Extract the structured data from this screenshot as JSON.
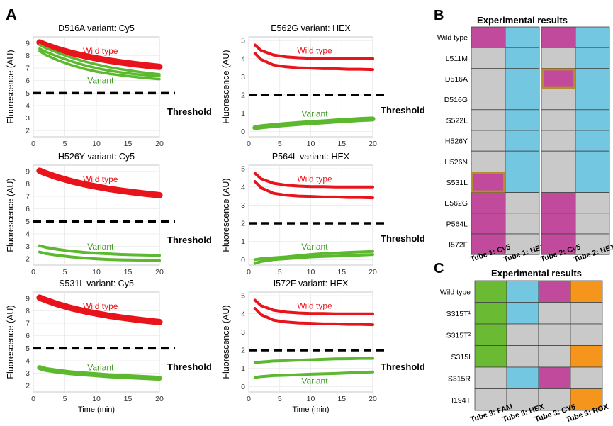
{
  "panel_labels": {
    "a": "A",
    "b": "B",
    "c": "C"
  },
  "threshold_label": "Threshold",
  "colors": {
    "wild_type": "#e8131b",
    "variant": "#5cb82e",
    "cy5": "#c14a9c",
    "hex": "#73c7e0",
    "fam": "#6aba34",
    "rox": "#f5951c",
    "grey": "#c9c9c9",
    "highlight_border": "#b58c2f"
  },
  "chart_data": [
    {
      "type": "line",
      "title": "D516A variant: Cy5",
      "xlabel": "",
      "ylabel": "Fluorescence (AU)",
      "xlim": [
        0,
        20
      ],
      "ylim": [
        1.5,
        9.5
      ],
      "xticks": [
        0,
        5,
        10,
        15,
        20
      ],
      "yticks": [
        2,
        3,
        4,
        5,
        6,
        7,
        8,
        9
      ],
      "threshold": 5,
      "x": [
        1,
        2,
        4,
        6,
        8,
        10,
        12,
        14,
        16,
        18,
        20
      ],
      "series": [
        {
          "name": "Wild type",
          "label": "Wild type",
          "color": "wild",
          "thick": 9,
          "values": [
            9.05,
            8.85,
            8.5,
            8.22,
            7.98,
            7.78,
            7.6,
            7.45,
            7.32,
            7.2,
            7.1
          ]
        },
        {
          "name": "Variant",
          "color": "variant",
          "thick": 3.5,
          "values": [
            8.85,
            8.6,
            8.2,
            7.85,
            7.55,
            7.3,
            7.08,
            6.9,
            6.75,
            6.62,
            6.5
          ]
        },
        {
          "name": "Variant",
          "color": "variant",
          "thick": 3.5,
          "values": [
            8.55,
            8.3,
            7.9,
            7.55,
            7.25,
            7.0,
            6.8,
            6.65,
            6.52,
            6.42,
            6.35
          ]
        },
        {
          "name": "Variant",
          "label": "Variant",
          "color": "variant",
          "thick": 3.5,
          "values": [
            8.35,
            8.05,
            7.6,
            7.25,
            6.95,
            6.72,
            6.55,
            6.42,
            6.3,
            6.2,
            6.12
          ]
        }
      ]
    },
    {
      "type": "line",
      "title": "E562G variant: HEX",
      "xlabel": "",
      "ylabel": "Fluorescence (AU)",
      "xlim": [
        0,
        20
      ],
      "ylim": [
        -0.3,
        5.2
      ],
      "xticks": [
        0,
        5,
        10,
        15,
        20
      ],
      "yticks": [
        0,
        1,
        2,
        3,
        4,
        5
      ],
      "threshold": 2,
      "x": [
        1,
        2,
        4,
        6,
        8,
        10,
        12,
        14,
        16,
        18,
        20
      ],
      "series": [
        {
          "name": "Wild type",
          "label": "Wild type",
          "color": "wild",
          "thick": 4,
          "values": [
            4.75,
            4.45,
            4.2,
            4.1,
            4.05,
            4.02,
            4.02,
            4.0,
            4.0,
            4.0,
            4.0
          ]
        },
        {
          "name": "Wild type",
          "color": "wild",
          "thick": 4,
          "values": [
            4.3,
            3.95,
            3.65,
            3.55,
            3.5,
            3.48,
            3.45,
            3.45,
            3.42,
            3.42,
            3.4
          ]
        },
        {
          "name": "Variant",
          "label": "Variant",
          "color": "variant",
          "thick": 7,
          "values": [
            0.2,
            0.25,
            0.32,
            0.38,
            0.43,
            0.48,
            0.52,
            0.57,
            0.61,
            0.65,
            0.68
          ]
        }
      ]
    },
    {
      "type": "line",
      "title": "H526Y variant: Cy5",
      "xlabel": "",
      "ylabel": "Fluorescence (AU)",
      "xlim": [
        0,
        20
      ],
      "ylim": [
        1.5,
        9.5
      ],
      "xticks": [
        0,
        5,
        10,
        15,
        20
      ],
      "yticks": [
        2,
        3,
        4,
        5,
        6,
        7,
        8,
        9
      ],
      "threshold": 5,
      "x": [
        1,
        2,
        4,
        6,
        8,
        10,
        12,
        14,
        16,
        18,
        20
      ],
      "series": [
        {
          "name": "Wild type",
          "label": "Wild type",
          "color": "wild",
          "thick": 9,
          "values": [
            9.05,
            8.85,
            8.5,
            8.22,
            7.98,
            7.78,
            7.6,
            7.45,
            7.32,
            7.2,
            7.1
          ]
        },
        {
          "name": "Variant",
          "label": "Variant",
          "color": "variant",
          "thick": 4,
          "values": [
            3.05,
            2.92,
            2.75,
            2.62,
            2.52,
            2.45,
            2.4,
            2.35,
            2.32,
            2.3,
            2.28
          ]
        },
        {
          "name": "Variant",
          "color": "variant",
          "thick": 4,
          "values": [
            2.55,
            2.42,
            2.27,
            2.15,
            2.07,
            2.0,
            1.95,
            1.92,
            1.9,
            1.88,
            1.85
          ]
        }
      ]
    },
    {
      "type": "line",
      "title": "P564L variant: HEX",
      "xlabel": "",
      "ylabel": "Fluorescence (AU)",
      "xlim": [
        0,
        20
      ],
      "ylim": [
        -0.3,
        5.2
      ],
      "xticks": [
        0,
        5,
        10,
        15,
        20
      ],
      "yticks": [
        0,
        1,
        2,
        3,
        4,
        5
      ],
      "threshold": 2,
      "x": [
        1,
        2,
        4,
        6,
        8,
        10,
        12,
        14,
        16,
        18,
        20
      ],
      "series": [
        {
          "name": "Wild type",
          "label": "Wild type",
          "color": "wild",
          "thick": 4,
          "values": [
            4.75,
            4.45,
            4.2,
            4.1,
            4.05,
            4.02,
            4.02,
            4.0,
            4.0,
            4.0,
            4.0
          ]
        },
        {
          "name": "Wild type",
          "color": "wild",
          "thick": 4,
          "values": [
            4.3,
            3.95,
            3.65,
            3.55,
            3.5,
            3.48,
            3.45,
            3.45,
            3.42,
            3.42,
            3.4
          ]
        },
        {
          "name": "Variant",
          "label": "Variant",
          "color": "variant",
          "thick": 4,
          "values": [
            0.0,
            0.05,
            0.1,
            0.15,
            0.22,
            0.28,
            0.33,
            0.36,
            0.4,
            0.42,
            0.45
          ]
        },
        {
          "name": "Variant",
          "color": "variant",
          "thick": 4,
          "values": [
            -0.2,
            -0.1,
            0.0,
            0.05,
            0.1,
            0.15,
            0.18,
            0.2,
            0.22,
            0.25,
            0.28
          ]
        }
      ]
    },
    {
      "type": "line",
      "title": "S531L variant: Cy5",
      "xlabel": "Time (min)",
      "ylabel": "Fluorescence (AU)",
      "xlim": [
        0,
        20
      ],
      "ylim": [
        1.5,
        9.5
      ],
      "xticks": [
        0,
        5,
        10,
        15,
        20
      ],
      "yticks": [
        2,
        3,
        4,
        5,
        6,
        7,
        8,
        9
      ],
      "threshold": 5,
      "x": [
        1,
        2,
        4,
        6,
        8,
        10,
        12,
        14,
        16,
        18,
        20
      ],
      "series": [
        {
          "name": "Wild type",
          "label": "Wild type",
          "color": "wild",
          "thick": 9,
          "values": [
            9.05,
            8.85,
            8.5,
            8.22,
            7.98,
            7.78,
            7.6,
            7.45,
            7.32,
            7.2,
            7.1
          ]
        },
        {
          "name": "Variant",
          "label": "Variant",
          "color": "variant",
          "thick": 7,
          "values": [
            3.45,
            3.3,
            3.15,
            3.03,
            2.95,
            2.88,
            2.8,
            2.75,
            2.7,
            2.65,
            2.6
          ]
        }
      ]
    },
    {
      "type": "line",
      "title": "I572F variant: HEX",
      "xlabel": "Time (min)",
      "ylabel": "Fluorescence (AU)",
      "xlim": [
        0,
        20
      ],
      "ylim": [
        -0.3,
        5.2
      ],
      "xticks": [
        0,
        5,
        10,
        15,
        20
      ],
      "yticks": [
        0,
        1,
        2,
        3,
        4,
        5
      ],
      "threshold": 2,
      "x": [
        1,
        2,
        4,
        6,
        8,
        10,
        12,
        14,
        16,
        18,
        20
      ],
      "series": [
        {
          "name": "Wild type",
          "label": "Wild type",
          "color": "wild",
          "thick": 4,
          "values": [
            4.75,
            4.45,
            4.2,
            4.1,
            4.05,
            4.02,
            4.02,
            4.0,
            4.0,
            4.0,
            4.0
          ]
        },
        {
          "name": "Wild type",
          "color": "wild",
          "thick": 4,
          "values": [
            4.3,
            3.95,
            3.65,
            3.55,
            3.5,
            3.48,
            3.45,
            3.45,
            3.42,
            3.42,
            3.4
          ]
        },
        {
          "name": "Variant",
          "color": "variant",
          "thick": 4,
          "values": [
            1.3,
            1.35,
            1.4,
            1.42,
            1.45,
            1.47,
            1.5,
            1.52,
            1.53,
            1.55,
            1.55
          ]
        },
        {
          "name": "Variant",
          "label": "Variant",
          "color": "variant",
          "thick": 4,
          "values": [
            0.5,
            0.55,
            0.6,
            0.62,
            0.65,
            0.68,
            0.7,
            0.72,
            0.75,
            0.78,
            0.8
          ]
        }
      ]
    },
    {
      "type": "table",
      "title": "Experimental results",
      "rows": [
        "Wild type",
        "L511M",
        "D516A",
        "D516G",
        "S522L",
        "H526Y",
        "H526N",
        "S531L",
        "E562G",
        "P564L",
        "I572F"
      ],
      "groups": [
        {
          "columns": [
            "Tube 1: Cy5",
            "Tube 1: HEX"
          ],
          "cells": [
            [
              "cy5",
              "hex"
            ],
            [
              "grey",
              "hex"
            ],
            [
              "grey",
              "hex"
            ],
            [
              "grey",
              "hex"
            ],
            [
              "grey",
              "hex"
            ],
            [
              "grey",
              "hex"
            ],
            [
              "grey",
              "hex"
            ],
            [
              "cy5",
              "hex"
            ],
            [
              "cy5",
              "grey"
            ],
            [
              "cy5",
              "grey"
            ],
            [
              "cy5",
              "grey"
            ]
          ]
        },
        {
          "columns": [
            "Tube 2: Cy5",
            "Tube 2: HEX"
          ],
          "cells": [
            [
              "cy5",
              "hex"
            ],
            [
              "grey",
              "hex"
            ],
            [
              "cy5",
              "hex"
            ],
            [
              "grey",
              "hex"
            ],
            [
              "grey",
              "hex"
            ],
            [
              "grey",
              "hex"
            ],
            [
              "grey",
              "hex"
            ],
            [
              "grey",
              "hex"
            ],
            [
              "cy5",
              "grey"
            ],
            [
              "cy5",
              "grey"
            ],
            [
              "cy5",
              "grey"
            ]
          ]
        }
      ],
      "highlights": [
        {
          "group": 1,
          "row": 2,
          "col": 0
        },
        {
          "group": 0,
          "row": 7,
          "col": 0
        }
      ]
    },
    {
      "type": "table",
      "title": "Experimental results",
      "rows": [
        "Wild type",
        "S315T¹",
        "S315T²",
        "S315I",
        "S315R",
        "I194T"
      ],
      "columns": [
        "Tube 3: FAM",
        "Tube 3: HEX",
        "Tube 3: CY5",
        "Tube 3: ROX"
      ],
      "cells": [
        [
          "fam",
          "hex",
          "cy5",
          "rox"
        ],
        [
          "fam",
          "hex",
          "grey",
          "grey"
        ],
        [
          "fam",
          "grey",
          "grey",
          "grey"
        ],
        [
          "fam",
          "grey",
          "grey",
          "rox"
        ],
        [
          "grey",
          "hex",
          "cy5",
          "grey"
        ],
        [
          "grey",
          "grey",
          "grey",
          "rox"
        ]
      ]
    }
  ]
}
